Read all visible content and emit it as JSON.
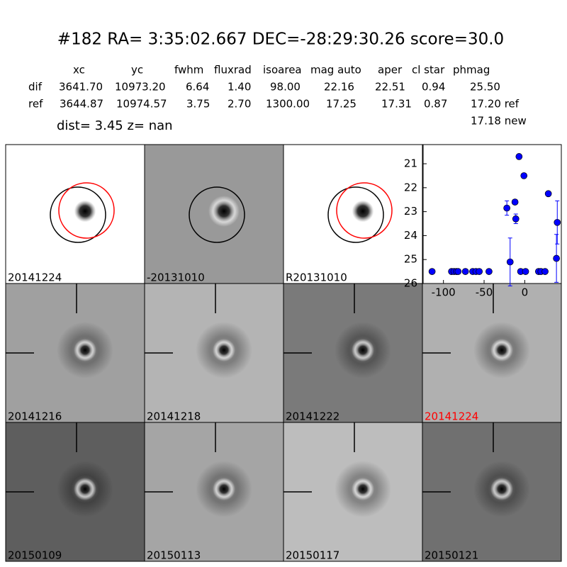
{
  "header": {
    "title": "#182   RA= 3:35:02.667 DEC=-28:29:30.26       score=30.0",
    "dist": "dist=  3.45       z=   nan",
    "extra": "17.18 new"
  },
  "table": {
    "columns": [
      "xc",
      "yc",
      "fwhm",
      "fluxrad",
      "isoarea",
      "mag auto",
      "aper",
      "cl star",
      "phmag"
    ],
    "rows": [
      [
        "dif",
        "3641.70",
        "10973.20",
        "6.64",
        "1.40",
        "98.00",
        "22.16",
        "22.51",
        "0.94",
        "25.50"
      ],
      [
        "ref",
        "3644.87",
        "10974.57",
        "3.75",
        "2.70",
        "1300.00",
        "17.25",
        "17.31",
        "0.87",
        "17.20 ref"
      ]
    ]
  },
  "panels": [
    {
      "label": "20141224"
    },
    {
      "label": "-20131010"
    },
    {
      "label": "R20131010"
    },
    {
      "label": "20141216"
    },
    {
      "label": "20141218"
    },
    {
      "label": "20141222"
    },
    {
      "label": "20141224",
      "label_color": "#ff0000"
    },
    {
      "label": "20150109"
    },
    {
      "label": "20150113"
    },
    {
      "label": "20150117"
    },
    {
      "label": "20150121"
    }
  ],
  "chart_data": {
    "type": "errorbar",
    "color": "#0000ff",
    "x": [
      -114,
      -90,
      -87,
      -84,
      -82,
      -73,
      -64,
      -60,
      -56,
      -44,
      -22,
      -18,
      -12,
      -11,
      -7,
      -5,
      -1,
      1,
      17,
      20,
      25,
      29,
      39,
      40
    ],
    "values": [
      25.5,
      25.5,
      25.5,
      25.5,
      25.5,
      25.5,
      25.5,
      25.5,
      25.5,
      25.5,
      22.85,
      25.1,
      22.6,
      23.3,
      20.7,
      25.5,
      21.5,
      25.5,
      25.5,
      25.5,
      25.5,
      22.25,
      24.95,
      23.45
    ],
    "errors": [
      0.05,
      0.05,
      0.05,
      0.05,
      0.05,
      0.05,
      0.05,
      0.05,
      0.05,
      0.05,
      0.3,
      1.0,
      0.1,
      0.2,
      0.05,
      0.05,
      0.05,
      0.05,
      0.05,
      0.05,
      0.05,
      0.05,
      1.0,
      0.9
    ],
    "xlim": [
      -125,
      45
    ],
    "ylim": [
      26,
      20.2
    ],
    "xticks": [
      -100,
      -50,
      0
    ],
    "yticks": [
      21,
      22,
      23,
      24,
      25,
      26
    ]
  }
}
